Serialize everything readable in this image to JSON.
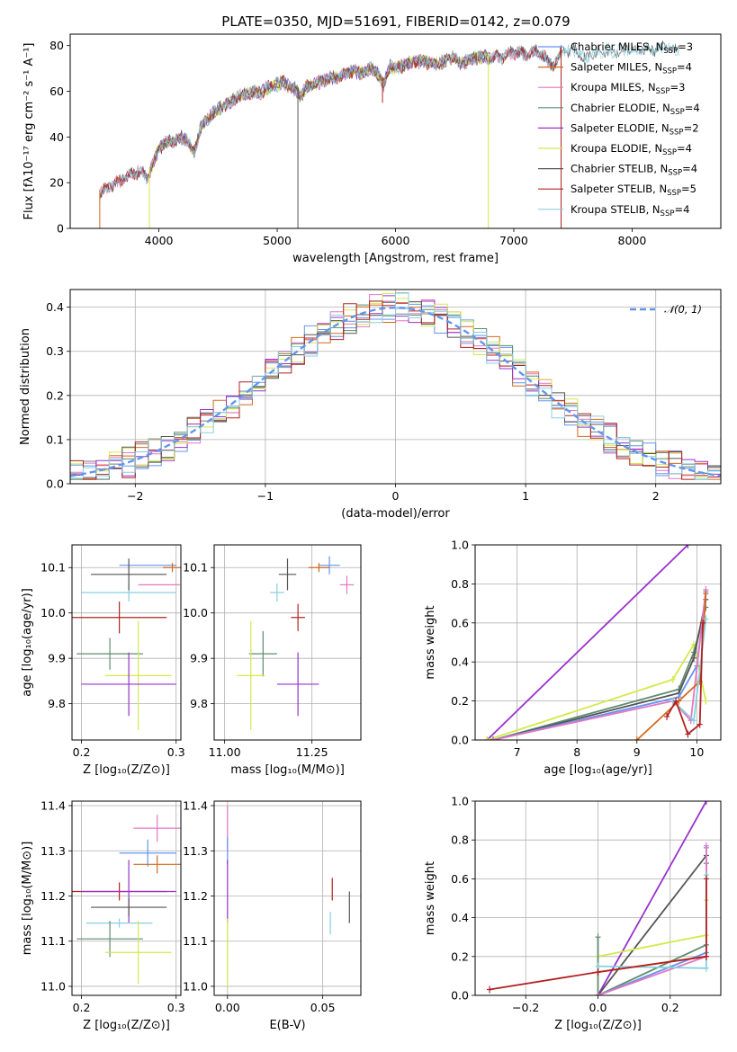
{
  "figure": {
    "title": "PLATE=0350, MJD=51691, FIBERID=0142, z=0.079"
  },
  "colors": {
    "Chabrier MILES": "#6495ed",
    "Salpeter MILES": "#d2691e",
    "Kroupa MILES": "#e377c2",
    "Chabrier ELODIE": "#5f8c6e",
    "Salpeter ELODIE": "#9932cc",
    "Kroupa ELODIE": "#d4e94a",
    "Chabrier STELIB": "#555555",
    "Salpeter STELIB": "#b22222",
    "Kroupa STELIB": "#87cfe0",
    "normal": "#6495ed"
  },
  "legend_entries": [
    {
      "key": "Chabrier MILES",
      "text": "Chabrier MILES, N",
      "sub": "SSP",
      "after": "=3"
    },
    {
      "key": "Salpeter MILES",
      "text": "Salpeter MILES, N",
      "sub": "SSP",
      "after": "=4"
    },
    {
      "key": "Kroupa MILES",
      "text": "Kroupa MILES, N",
      "sub": "SSP",
      "after": "=3"
    },
    {
      "key": "Chabrier ELODIE",
      "text": "Chabrier ELODIE, N",
      "sub": "SSP",
      "after": "=4"
    },
    {
      "key": "Salpeter ELODIE",
      "text": "Salpeter ELODIE, N",
      "sub": "SSP",
      "after": "=2"
    },
    {
      "key": "Kroupa ELODIE",
      "text": "Kroupa ELODIE, N",
      "sub": "SSP",
      "after": "=4"
    },
    {
      "key": "Chabrier STELIB",
      "text": "Chabrier STELIB, N",
      "sub": "SSP",
      "after": "=4"
    },
    {
      "key": "Salpeter STELIB",
      "text": "Salpeter STELIB, N",
      "sub": "SSP",
      "after": "=5"
    },
    {
      "key": "Kroupa STELIB",
      "text": "Kroupa STELIB, N",
      "sub": "SSP",
      "after": "=4"
    }
  ],
  "chart_data": [
    {
      "id": "spectrum",
      "type": "line",
      "xlabel": "wavelength [Angstrom, rest frame]",
      "ylabel": "Flux [fλ10⁻¹⁷ erg cm⁻² s⁻¹ A⁻¹]",
      "xlim": [
        3250,
        8750
      ],
      "ylim": [
        0,
        85
      ],
      "xticks": [
        4000,
        5000,
        6000,
        7000,
        8000
      ],
      "yticks": [
        0,
        20,
        40,
        60,
        80
      ],
      "grid": false,
      "legend_position": "right",
      "continuum": {
        "x": [
          3500,
          3550,
          3600,
          3650,
          3700,
          3750,
          3800,
          3850,
          3900,
          3950,
          4000,
          4050,
          4100,
          4150,
          4200,
          4250,
          4300,
          4350,
          4400,
          4450,
          4500,
          4550,
          4600,
          4650,
          4700,
          4750,
          4800,
          4850,
          4900,
          4950,
          5000,
          5050,
          5100,
          5150,
          5200,
          5250,
          5300,
          5350,
          5400,
          5450,
          5500,
          5550,
          5600,
          5650,
          5700,
          5750,
          5800,
          5850,
          5900,
          5950,
          6000,
          6050,
          6100,
          6150,
          6200,
          6250,
          6300,
          6350,
          6400,
          6450,
          6500,
          6550,
          6600,
          6650,
          6700,
          6750,
          6800,
          6850,
          6900,
          6950,
          7000,
          7050,
          7100,
          7150,
          7200,
          7250,
          7300,
          7350,
          7400,
          7450,
          7500,
          7550,
          7600,
          7650,
          7700,
          7750,
          7800,
          7850,
          7900,
          7950,
          8000,
          8050,
          8100,
          8150,
          8200,
          8250,
          8300,
          8350,
          8400
        ],
        "y": [
          15,
          17,
          19,
          20,
          22,
          23,
          24,
          25,
          22,
          28,
          35,
          37,
          38,
          39,
          40,
          38,
          33,
          44,
          47,
          50,
          52,
          54,
          55,
          57,
          58,
          59,
          60,
          59,
          61,
          62,
          63,
          64,
          62,
          61,
          58,
          62,
          63,
          64,
          65,
          66,
          66,
          67,
          68,
          69,
          68,
          69,
          70,
          68,
          63,
          71,
          70,
          71,
          72,
          73,
          73,
          73,
          72,
          72,
          73,
          74,
          75,
          72,
          73,
          74,
          75,
          75,
          74,
          75,
          75,
          76,
          77,
          77,
          76,
          77,
          77,
          76,
          72,
          72,
          77,
          78,
          78,
          77,
          74,
          76,
          77,
          78,
          78,
          77,
          78,
          78,
          78,
          78,
          79,
          78,
          78,
          79,
          79,
          78,
          78
        ]
      },
      "absorption_features": [
        {
          "x": 5175,
          "depth_to": 0,
          "key": "Chabrier STELIB"
        },
        {
          "x": 3920,
          "depth_to": 0,
          "key": "Kroupa ELODIE"
        },
        {
          "x": 6785,
          "depth_to": 0,
          "key": "Kroupa ELODIE"
        },
        {
          "x": 7400,
          "depth_to": 0,
          "key": "Salpeter STELIB"
        },
        {
          "x": 3500,
          "depth_to": 0,
          "key": "Salpeter MILES"
        },
        {
          "x": 5890,
          "depth_to": 55,
          "key": "Salpeter STELIB"
        }
      ]
    },
    {
      "id": "residuals",
      "type": "step-histogram",
      "xlabel": "(data-model)/error",
      "ylabel": "Normed distribution",
      "xlim": [
        -2.5,
        2.5
      ],
      "ylim": [
        0,
        0.44
      ],
      "xticks": [
        -2,
        -1,
        0,
        1,
        2
      ],
      "yticks": [
        0.0,
        0.1,
        0.2,
        0.3,
        0.4
      ],
      "grid": true,
      "bin_width": 0.1,
      "bin_start": -2.5,
      "reference_curve": {
        "name": "𝒩(0, 1)",
        "type": "normal",
        "mean": 0,
        "sigma": 1
      },
      "legend_position": "top-right"
    },
    {
      "id": "age-vs-Z",
      "type": "errorbar",
      "xlabel": "Z [log₁₀(Z/Z⊙)]",
      "ylabel": "age [log₁₀(age/yr)]",
      "xlim": [
        0.19,
        0.305
      ],
      "ylim": [
        9.72,
        10.15
      ],
      "xticks": [
        0.2,
        0.3
      ],
      "yticks": [
        9.8,
        9.9,
        10.0,
        10.1
      ],
      "grid": true,
      "points": [
        {
          "key": "Chabrier MILES",
          "x": 0.27,
          "xerr": 0.03,
          "y": 10.105,
          "yerr": 0.0
        },
        {
          "key": "Salpeter MILES",
          "x": 0.296,
          "xerr": 0.01,
          "y": 10.1,
          "yerr": 0.01
        },
        {
          "key": "Kroupa MILES",
          "x": 0.282,
          "xerr": 0.022,
          "y": 10.062,
          "yerr": 0.0
        },
        {
          "key": "Kroupa STELIB",
          "x": 0.25,
          "xerr": 0.05,
          "y": 10.045,
          "yerr": 0.02
        },
        {
          "key": "Chabrier STELIB",
          "x": 0.25,
          "xerr": 0.04,
          "y": 10.085,
          "yerr": 0.035
        },
        {
          "key": "Salpeter STELIB",
          "x": 0.24,
          "xerr": 0.05,
          "y": 9.99,
          "yerr": 0.035
        },
        {
          "key": "Chabrier ELODIE",
          "x": 0.23,
          "xerr": 0.035,
          "y": 9.91,
          "yerr": 0.035
        },
        {
          "key": "Kroupa ELODIE",
          "x": 0.26,
          "xerr": 0.035,
          "y": 9.862,
          "yerr": 0.12
        },
        {
          "key": "Salpeter ELODIE",
          "x": 0.25,
          "xerr": 0.05,
          "y": 9.843,
          "yerr": 0.07
        }
      ]
    },
    {
      "id": "age-vs-mass",
      "type": "errorbar",
      "xlabel": "mass [log₁₀(M/M⊙)]",
      "ylabel": "",
      "xlim": [
        10.97,
        11.39
      ],
      "ylim": [
        9.72,
        10.15
      ],
      "xticks": [
        11.0,
        11.25
      ],
      "yticks": [
        9.8,
        9.9,
        10.0,
        10.1
      ],
      "grid": true,
      "points": [
        {
          "key": "Chabrier MILES",
          "x": 11.3,
          "xerr": 0.03,
          "y": 10.105,
          "yerr": 0.02
        },
        {
          "key": "Salpeter MILES",
          "x": 11.27,
          "xerr": 0.03,
          "y": 10.1,
          "yerr": 0.01
        },
        {
          "key": "Kroupa MILES",
          "x": 11.35,
          "xerr": 0.02,
          "y": 10.062,
          "yerr": 0.02
        },
        {
          "key": "Chabrier STELIB",
          "x": 11.18,
          "xerr": 0.025,
          "y": 10.085,
          "yerr": 0.035
        },
        {
          "key": "Kroupa STELIB",
          "x": 11.15,
          "xerr": 0.02,
          "y": 10.045,
          "yerr": 0.02
        },
        {
          "key": "Salpeter STELIB",
          "x": 11.21,
          "xerr": 0.02,
          "y": 9.99,
          "yerr": 0.03
        },
        {
          "key": "Chabrier ELODIE",
          "x": 11.11,
          "xerr": 0.04,
          "y": 9.91,
          "yerr": 0.05
        },
        {
          "key": "Kroupa ELODIE",
          "x": 11.075,
          "xerr": 0.04,
          "y": 9.862,
          "yerr": 0.12
        },
        {
          "key": "Salpeter ELODIE",
          "x": 11.21,
          "xerr": 0.06,
          "y": 9.843,
          "yerr": 0.07
        }
      ]
    },
    {
      "id": "weight-vs-age",
      "type": "line",
      "xlabel": "age [log₁₀(age/yr)]",
      "ylabel": "mass weight",
      "xlim": [
        6.3,
        10.4
      ],
      "ylim": [
        0,
        1
      ],
      "xticks": [
        7,
        8,
        9,
        10
      ],
      "yticks": [
        0.0,
        0.2,
        0.4,
        0.6,
        0.8,
        1.0
      ],
      "grid": true,
      "series": [
        {
          "key": "Salpeter ELODIE",
          "x": [
            6.5,
            9.85
          ],
          "y": [
            0.0,
            1.0
          ]
        },
        {
          "key": "Kroupa ELODIE",
          "x": [
            6.5,
            9.6,
            9.95,
            10.15
          ],
          "y": [
            0.0,
            0.31,
            0.49,
            0.2
          ]
        },
        {
          "key": "Chabrier ELODIE",
          "x": [
            6.6,
            9.7,
            9.95,
            10.15
          ],
          "y": [
            0.0,
            0.26,
            0.45,
            0.68
          ]
        },
        {
          "key": "Chabrier STELIB",
          "x": [
            6.6,
            9.7,
            9.95,
            10.15
          ],
          "y": [
            0.0,
            0.24,
            0.42,
            0.72
          ]
        },
        {
          "key": "Chabrier MILES",
          "x": [
            6.6,
            9.7,
            10.0,
            10.15
          ],
          "y": [
            0.0,
            0.22,
            0.38,
            0.76
          ]
        },
        {
          "key": "Kroupa MILES",
          "x": [
            6.6,
            9.6,
            9.9,
            10.15
          ],
          "y": [
            0.0,
            0.2,
            0.1,
            0.77
          ]
        },
        {
          "key": "Salpeter MILES",
          "x": [
            9.0,
            9.7,
            10.05,
            10.15
          ],
          "y": [
            0.0,
            0.2,
            0.3,
            0.75
          ]
        },
        {
          "key": "Kroupa STELIB",
          "x": [
            9.6,
            9.95,
            10.15
          ],
          "y": [
            0.2,
            0.1,
            0.62
          ]
        },
        {
          "key": "Salpeter STELIB",
          "x": [
            9.5,
            9.65,
            9.85,
            10.05,
            10.1
          ],
          "y": [
            0.12,
            0.2,
            0.03,
            0.08,
            0.6
          ]
        }
      ]
    },
    {
      "id": "mass-vs-Z",
      "type": "errorbar",
      "xlabel": "Z [log₁₀(Z/Z⊙)]",
      "ylabel": "mass [log₁₀(M/M⊙)]",
      "xlim": [
        0.19,
        0.305
      ],
      "ylim": [
        10.98,
        11.41
      ],
      "xticks": [
        0.2,
        0.3
      ],
      "yticks": [
        11.0,
        11.1,
        11.2,
        11.3,
        11.4
      ],
      "grid": true,
      "points": [
        {
          "key": "Kroupa MILES",
          "x": 0.28,
          "xerr": 0.025,
          "y": 11.35,
          "yerr": 0.03
        },
        {
          "key": "Chabrier MILES",
          "x": 0.27,
          "xerr": 0.03,
          "y": 11.295,
          "yerr": 0.03
        },
        {
          "key": "Salpeter MILES",
          "x": 0.28,
          "xerr": 0.025,
          "y": 11.27,
          "yerr": 0.02
        },
        {
          "key": "Salpeter STELIB",
          "x": 0.24,
          "xerr": 0.05,
          "y": 11.21,
          "yerr": 0.02
        },
        {
          "key": "Salpeter ELODIE",
          "x": 0.25,
          "xerr": 0.05,
          "y": 11.21,
          "yerr": 0.07
        },
        {
          "key": "Chabrier STELIB",
          "x": 0.25,
          "xerr": 0.04,
          "y": 11.175,
          "yerr": 0.02
        },
        {
          "key": "Kroupa STELIB",
          "x": 0.24,
          "xerr": 0.035,
          "y": 11.14,
          "yerr": 0.01
        },
        {
          "key": "Chabrier ELODIE",
          "x": 0.23,
          "xerr": 0.035,
          "y": 11.105,
          "yerr": 0.04
        },
        {
          "key": "Kroupa ELODIE",
          "x": 0.26,
          "xerr": 0.035,
          "y": 11.075,
          "yerr": 0.07
        }
      ]
    },
    {
      "id": "mass-vs-ebv",
      "type": "errorbar",
      "xlabel": "E(B-V)",
      "ylabel": "",
      "xlim": [
        -0.007,
        0.07
      ],
      "ylim": [
        10.98,
        11.41
      ],
      "xticks": [
        0.0,
        0.05
      ],
      "yticks": [
        11.0,
        11.1,
        11.2,
        11.3,
        11.4
      ],
      "grid": true,
      "points": [
        {
          "key": "Kroupa MILES",
          "x": 0.0,
          "xerr": 0.0,
          "y": 11.35,
          "yerr": 0.05
        },
        {
          "key": "Chabrier MILES",
          "x": 0.0,
          "xerr": 0.0,
          "y": 11.3,
          "yerr": 0.03
        },
        {
          "key": "Salpeter ELODIE",
          "x": 0.0,
          "xerr": 0.0,
          "y": 11.21,
          "yerr": 0.07
        },
        {
          "key": "Kroupa ELODIE",
          "x": 0.0,
          "xerr": 0.0,
          "y": 11.075,
          "yerr": 0.075
        },
        {
          "key": "Salpeter STELIB",
          "x": 0.055,
          "xerr": 0.0,
          "y": 11.215,
          "yerr": 0.025
        },
        {
          "key": "Kroupa STELIB",
          "x": 0.054,
          "xerr": 0.0,
          "y": 11.14,
          "yerr": 0.025
        },
        {
          "key": "Chabrier STELIB",
          "x": 0.064,
          "xerr": 0.0,
          "y": 11.175,
          "yerr": 0.035
        }
      ]
    },
    {
      "id": "weight-vs-Z",
      "type": "line",
      "xlabel": "Z [log₁₀(Z/Z⊙)]",
      "ylabel": "mass weight",
      "xlim": [
        -0.34,
        0.34
      ],
      "ylim": [
        0,
        1
      ],
      "xticks": [
        -0.2,
        0.0,
        0.2
      ],
      "yticks": [
        0.0,
        0.2,
        0.4,
        0.6,
        0.8,
        1.0
      ],
      "grid": true,
      "series": [
        {
          "key": "Salpeter ELODIE",
          "x": [
            0.0,
            0.3
          ],
          "y": [
            0.0,
            1.0
          ]
        },
        {
          "key": "Chabrier STELIB",
          "x": [
            0.0,
            0.3
          ],
          "y": [
            0.0,
            0.72
          ]
        },
        {
          "key": "Kroupa ELODIE",
          "x": [
            0.0,
            0.3,
            0.3
          ],
          "y": [
            0.2,
            0.31,
            0.49
          ]
        },
        {
          "key": "Chabrier ELODIE",
          "x": [
            0.0,
            0.0,
            0.3,
            0.3
          ],
          "y": [
            0.3,
            0.0,
            0.26,
            0.68
          ]
        },
        {
          "key": "Chabrier MILES",
          "x": [
            0.0,
            0.3,
            0.3
          ],
          "y": [
            0.0,
            0.22,
            0.76
          ]
        },
        {
          "key": "Kroupa MILES",
          "x": [
            0.0,
            0.3,
            0.3
          ],
          "y": [
            0.0,
            0.2,
            0.77
          ]
        },
        {
          "key": "Kroupa STELIB",
          "x": [
            0.0,
            0.3,
            0.3
          ],
          "y": [
            0.15,
            0.14,
            0.62
          ]
        },
        {
          "key": "Salpeter MILES",
          "x": [
            0.0,
            0.3
          ],
          "y": [
            0.12,
            0.2
          ]
        },
        {
          "key": "Salpeter STELIB",
          "x": [
            -0.3,
            0.0,
            0.3,
            0.3
          ],
          "y": [
            0.03,
            0.12,
            0.2,
            0.6
          ]
        }
      ]
    }
  ]
}
